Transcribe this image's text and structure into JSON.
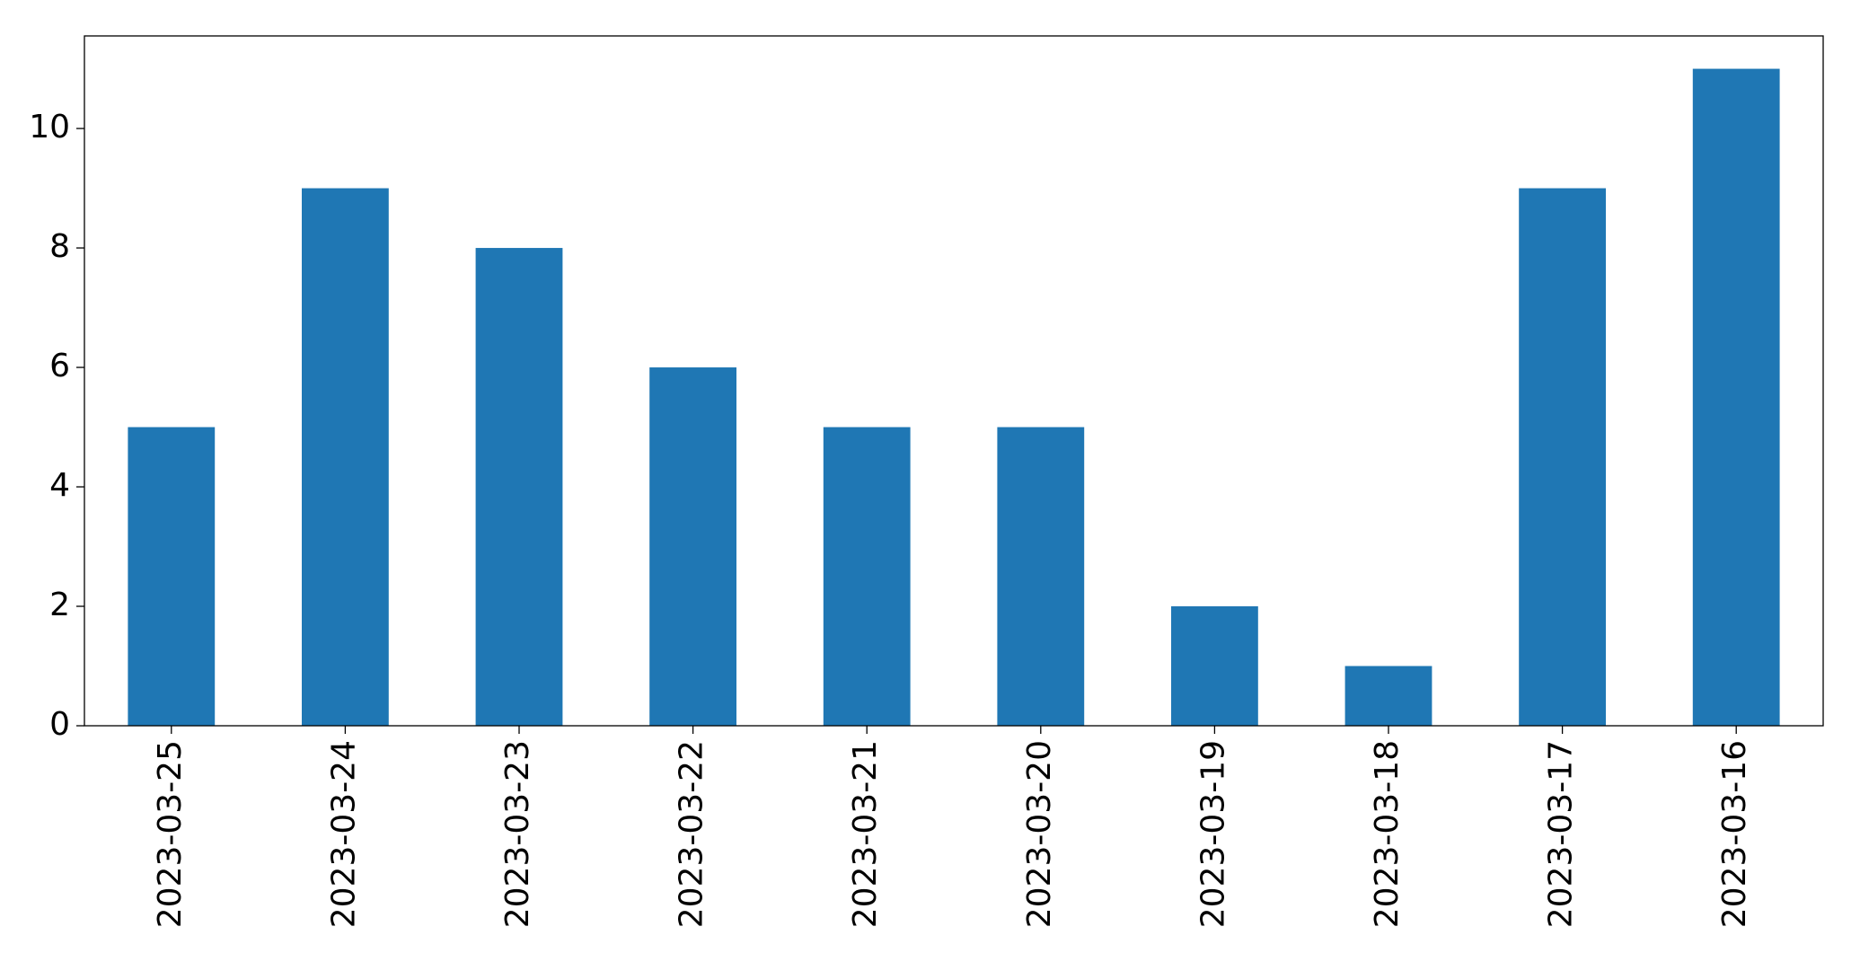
{
  "chart_data": {
    "type": "bar",
    "categories": [
      "2023-03-25",
      "2023-03-24",
      "2023-03-23",
      "2023-03-22",
      "2023-03-21",
      "2023-03-20",
      "2023-03-19",
      "2023-03-18",
      "2023-03-17",
      "2023-03-16"
    ],
    "values": [
      5,
      9,
      8,
      6,
      5,
      5,
      2,
      1,
      9,
      11
    ],
    "color": "#1f77b4",
    "ylim": [
      0,
      11.55
    ],
    "yticks": [
      0,
      2,
      4,
      6,
      8,
      10
    ],
    "grid": false
  }
}
